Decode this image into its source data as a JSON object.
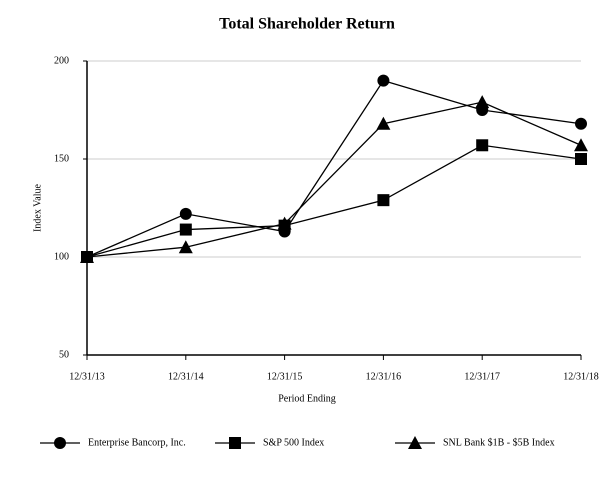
{
  "chart_data": {
    "type": "line",
    "title": "Total Shareholder Return",
    "x_label": "Period Ending",
    "y_label": "Index Value",
    "categories": [
      "12/31/13",
      "12/31/14",
      "12/31/15",
      "12/31/16",
      "12/31/17",
      "12/31/18"
    ],
    "series": [
      {
        "name": "Enterprise Bancorp, Inc.",
        "color": "#000000",
        "marker": "circle",
        "values": [
          100,
          122,
          113,
          190,
          175,
          168
        ]
      },
      {
        "name": "S&P 500 Index",
        "color": "#000000",
        "marker": "square",
        "values": [
          100,
          114,
          116,
          129,
          157,
          150
        ]
      },
      {
        "name": "SNL Bank $1B - $5B Index",
        "color": "#000000",
        "marker": "triangle",
        "values": [
          100,
          105,
          117,
          168,
          179,
          157
        ]
      }
    ],
    "ylim": [
      50,
      200
    ],
    "yticks": [
      50,
      100,
      150,
      200
    ],
    "grid": true,
    "legend": "bottom"
  }
}
